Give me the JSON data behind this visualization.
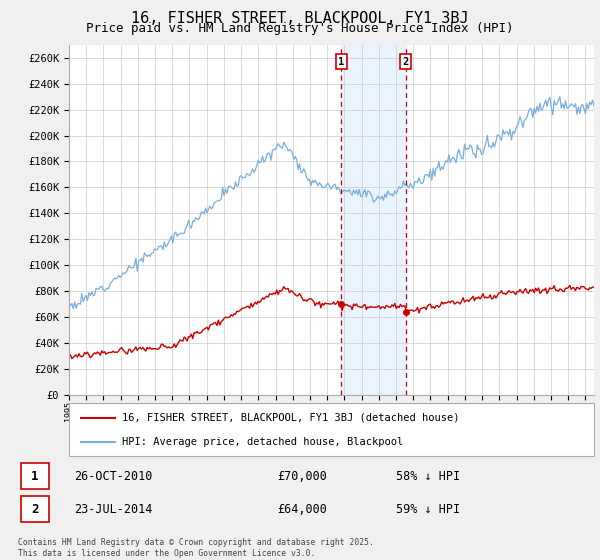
{
  "title": "16, FISHER STREET, BLACKPOOL, FY1 3BJ",
  "subtitle": "Price paid vs. HM Land Registry's House Price Index (HPI)",
  "legend_line1": "16, FISHER STREET, BLACKPOOL, FY1 3BJ (detached house)",
  "legend_line2": "HPI: Average price, detached house, Blackpool",
  "ylabel_ticks": [
    "£0",
    "£20K",
    "£40K",
    "£60K",
    "£80K",
    "£100K",
    "£120K",
    "£140K",
    "£160K",
    "£180K",
    "£200K",
    "£220K",
    "£240K",
    "£260K"
  ],
  "ytick_values": [
    0,
    20000,
    40000,
    60000,
    80000,
    100000,
    120000,
    140000,
    160000,
    180000,
    200000,
    220000,
    240000,
    260000
  ],
  "ylim": [
    0,
    270000
  ],
  "xlim_start": 1995.0,
  "xlim_end": 2025.5,
  "line_color_red": "#cc0000",
  "line_color_blue": "#7aade0",
  "vline_color": "#cc0000",
  "shade_color": "#ddeeff",
  "transaction1_x": 2010.82,
  "transaction2_x": 2014.56,
  "transaction1_price_y": 70000,
  "transaction2_price_y": 64000,
  "transaction1_date": "26-OCT-2010",
  "transaction1_price": "£70,000",
  "transaction1_hpi": "58% ↓ HPI",
  "transaction2_date": "23-JUL-2014",
  "transaction2_price": "£64,000",
  "transaction2_hpi": "59% ↓ HPI",
  "footer": "Contains HM Land Registry data © Crown copyright and database right 2025.\nThis data is licensed under the Open Government Licence v3.0.",
  "background_color": "#f0f0f0",
  "plot_background": "#ffffff",
  "title_fontsize": 11,
  "subtitle_fontsize": 9,
  "axis_fontsize": 7.5
}
